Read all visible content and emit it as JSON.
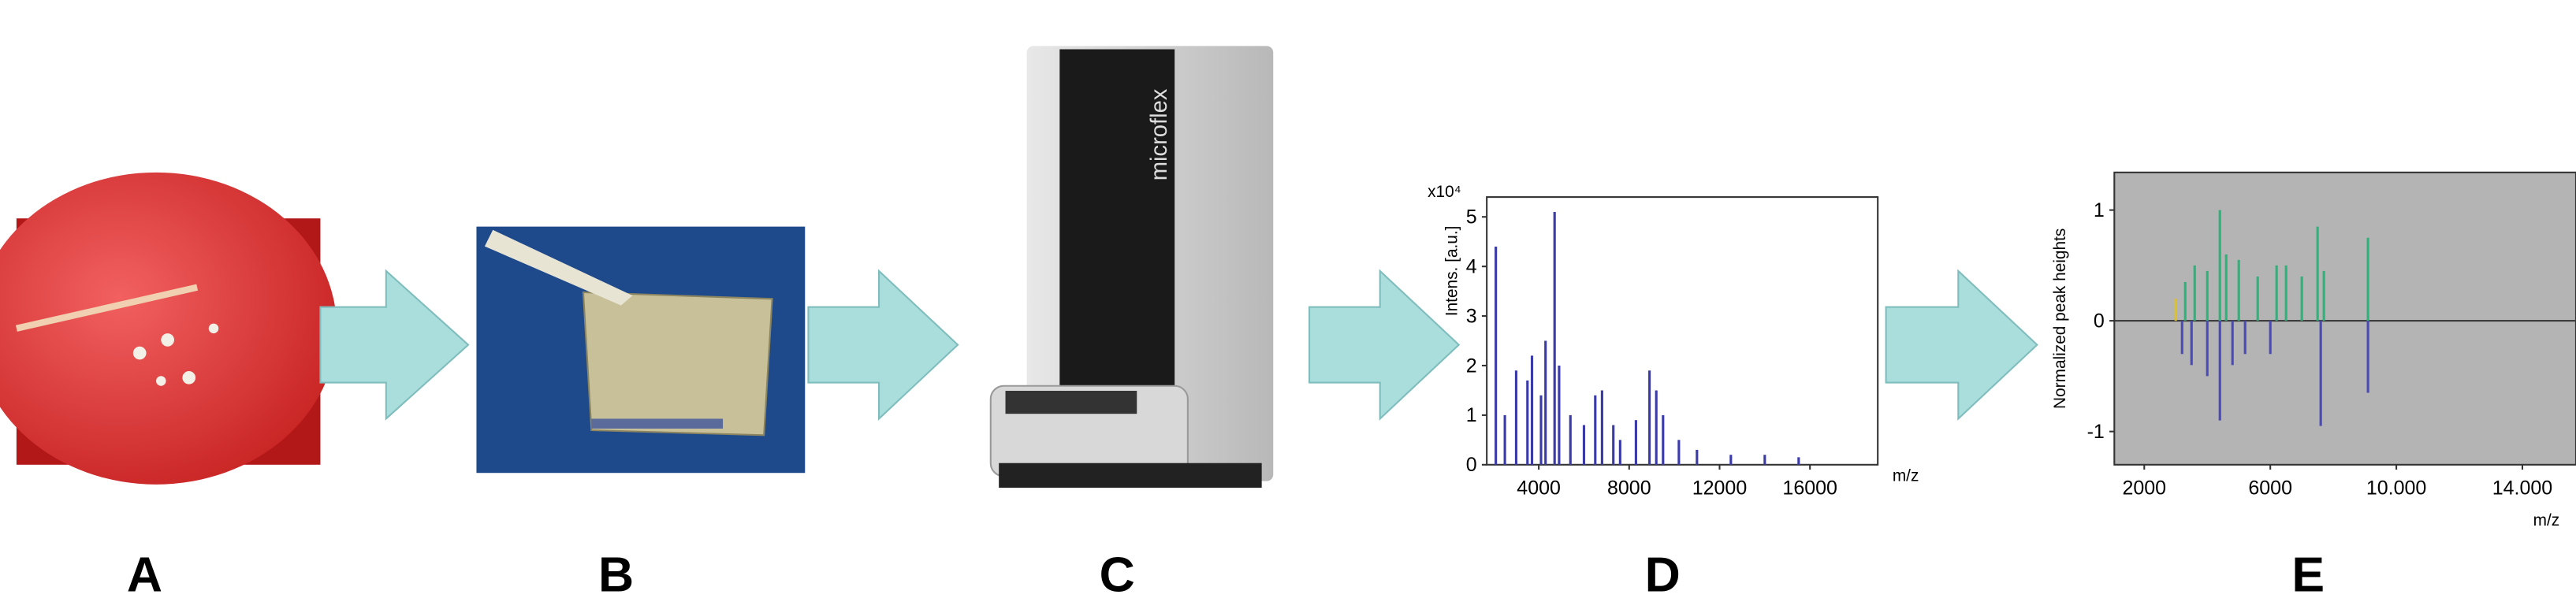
{
  "panels": [
    {
      "label": "A"
    },
    {
      "label": "B"
    },
    {
      "label": "C"
    },
    {
      "label": "D"
    },
    {
      "label": "E"
    }
  ],
  "instrument_text": "microflex",
  "charts": {
    "d": {
      "type": "spectrum",
      "ylabel": "Intens. [a.u.]",
      "multiplier": "x10⁴",
      "xlabel": "m/z",
      "xlim": [
        1700,
        19000
      ],
      "ylim": [
        0,
        5.4
      ],
      "xticks": [
        4000,
        8000,
        12000,
        16000
      ],
      "yticks": [
        0,
        1,
        2,
        3,
        4,
        5
      ],
      "series": [
        {
          "color": "#3a3aa8",
          "x": [
            2100,
            2500,
            3000,
            3500,
            3700,
            4100,
            4300,
            4700,
            4900,
            5400,
            6000,
            6500,
            6800,
            7300,
            7600,
            8300,
            8900,
            9200,
            9500,
            10200,
            11000,
            12500,
            14000,
            15500
          ],
          "values": [
            4.4,
            1.0,
            1.9,
            1.7,
            2.2,
            1.4,
            2.5,
            5.1,
            2.0,
            1.0,
            0.8,
            1.4,
            1.5,
            0.8,
            0.5,
            0.9,
            1.9,
            1.5,
            1.0,
            0.5,
            0.3,
            0.2,
            0.2,
            0.15
          ]
        }
      ]
    },
    "e": {
      "type": "spectrum",
      "ylabel": "Normalized peak heights",
      "xlabel": "m/z",
      "xlim": [
        1050,
        15700
      ],
      "ylim": [
        -1.3,
        1.34
      ],
      "xticks": [
        2000,
        6000,
        {
          "value": 10000,
          "label": "10.000"
        },
        {
          "value": 14000,
          "label": "14.000"
        }
      ],
      "yticks": [
        1,
        0,
        -1
      ],
      "series": [
        {
          "color": "#2db37a",
          "x": [
            3300,
            3600,
            4000,
            4400,
            4600,
            5000,
            5600,
            6200,
            6500,
            7000,
            7500,
            7700,
            9100
          ],
          "values": [
            0.35,
            0.5,
            0.45,
            1.0,
            0.6,
            0.55,
            0.4,
            0.5,
            0.5,
            0.4,
            0.85,
            0.45,
            0.75
          ]
        },
        {
          "color": "#e0c020",
          "x": [
            3000
          ],
          "values": [
            0.2
          ]
        },
        {
          "color": "#4a4ab8",
          "x": [
            3200,
            3500,
            4000,
            4400,
            4800,
            5200,
            6000,
            7600,
            9100
          ],
          "values": [
            -0.3,
            -0.4,
            -0.5,
            -0.9,
            -0.4,
            -0.3,
            -0.3,
            -0.95,
            -0.65
          ]
        }
      ]
    }
  }
}
